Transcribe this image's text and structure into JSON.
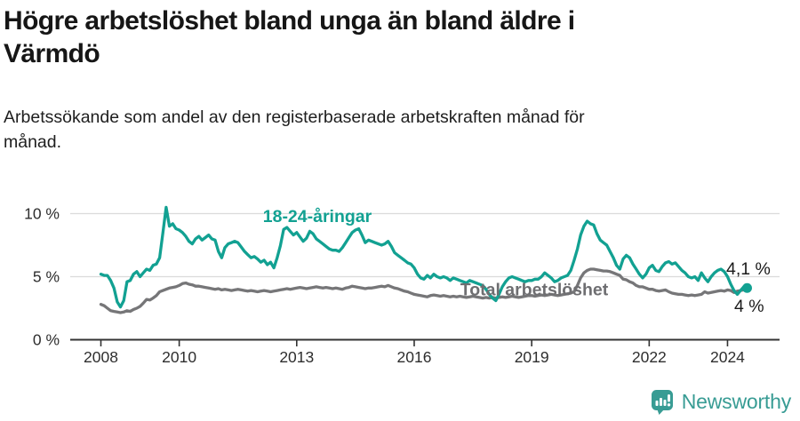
{
  "page": {
    "title": "Högre arbetslöshet bland unga än bland äldre i\nVärmdö",
    "subtitle": "Arbetssökande som andel av den registerbaserade arbetskraften månad för\nmånad."
  },
  "footer": {
    "brand": "Newsworthy",
    "brand_color": "#389c94",
    "logo_icon": "speech-bubble-bar-chart-icon"
  },
  "chart_data": {
    "type": "line",
    "title": "Högre arbetslöshet bland unga än bland äldre i Värmdö",
    "subtitle": "Arbetssökande som andel av den registerbaserade arbetskraften månad för månad.",
    "unit": "%",
    "frequency": "monthly",
    "period_start": "2008-01",
    "period_end": "2024-07",
    "grid": "horizontal",
    "legend_position": "inline-labels",
    "ylim": [
      0,
      10.7
    ],
    "y_ticks": [
      {
        "value": 0,
        "label": "0 %"
      },
      {
        "value": 5,
        "label": "5 %"
      },
      {
        "value": 10,
        "label": "10 %"
      }
    ],
    "x_ticks": [
      {
        "year": 2008,
        "label": "2008"
      },
      {
        "year": 2010,
        "label": "2010"
      },
      {
        "year": 2013,
        "label": "2013"
      },
      {
        "year": 2016,
        "label": "2016"
      },
      {
        "year": 2019,
        "label": "2019"
      },
      {
        "year": 2022,
        "label": "2022"
      },
      {
        "year": 2024,
        "label": "2024"
      }
    ],
    "axis_color": "#333333",
    "gridline_color": "#dbdbdb",
    "end_label_color": "#1a1a1a",
    "series": [
      {
        "name": "Total arbetslöshet",
        "inline_label": "Total arbetslöshet",
        "color": "#767678",
        "label_color": "#6e6e71",
        "end_label": "4 %",
        "end_value": 4.0,
        "end_dot": false,
        "values": [
          2.8,
          2.7,
          2.5,
          2.3,
          2.25,
          2.2,
          2.15,
          2.2,
          2.3,
          2.25,
          2.4,
          2.5,
          2.65,
          2.9,
          3.2,
          3.15,
          3.3,
          3.5,
          3.8,
          3.9,
          4.0,
          4.1,
          4.15,
          4.2,
          4.3,
          4.45,
          4.5,
          4.4,
          4.35,
          4.25,
          4.25,
          4.2,
          4.15,
          4.1,
          4.05,
          4.0,
          4.05,
          3.95,
          4.0,
          3.95,
          3.9,
          3.95,
          4.0,
          3.95,
          3.9,
          3.85,
          3.9,
          3.85,
          3.8,
          3.85,
          3.9,
          3.85,
          3.8,
          3.85,
          3.9,
          3.95,
          4.0,
          4.05,
          4.0,
          4.05,
          4.1,
          4.15,
          4.1,
          4.05,
          4.1,
          4.15,
          4.2,
          4.15,
          4.1,
          4.15,
          4.1,
          4.05,
          4.1,
          4.05,
          4.0,
          4.1,
          4.15,
          4.25,
          4.2,
          4.15,
          4.1,
          4.05,
          4.1,
          4.1,
          4.15,
          4.2,
          4.25,
          4.2,
          4.3,
          4.2,
          4.1,
          4.05,
          3.95,
          3.85,
          3.8,
          3.7,
          3.6,
          3.55,
          3.5,
          3.45,
          3.4,
          3.5,
          3.55,
          3.5,
          3.45,
          3.5,
          3.45,
          3.4,
          3.45,
          3.4,
          3.45,
          3.4,
          3.35,
          3.4,
          3.45,
          3.4,
          3.35,
          3.3,
          3.35,
          3.3,
          3.35,
          3.3,
          3.35,
          3.4,
          3.35,
          3.4,
          3.45,
          3.4,
          3.35,
          3.4,
          3.45,
          3.5,
          3.5,
          3.45,
          3.5,
          3.55,
          3.5,
          3.55,
          3.6,
          3.55,
          3.5,
          3.55,
          3.6,
          3.65,
          3.7,
          3.8,
          4.3,
          4.9,
          5.3,
          5.5,
          5.6,
          5.6,
          5.55,
          5.5,
          5.45,
          5.45,
          5.4,
          5.3,
          5.2,
          5.1,
          4.8,
          4.75,
          4.6,
          4.5,
          4.3,
          4.2,
          4.2,
          4.1,
          4.0,
          4.0,
          3.9,
          3.85,
          3.9,
          3.95,
          3.8,
          3.7,
          3.65,
          3.6,
          3.6,
          3.55,
          3.5,
          3.55,
          3.5,
          3.55,
          3.6,
          3.8,
          3.7,
          3.75,
          3.8,
          3.85,
          3.9,
          3.85,
          3.95,
          3.9,
          3.75,
          3.85,
          3.9,
          3.95,
          4.0
        ]
      },
      {
        "name": "18-24-åringar",
        "inline_label": "18-24-åringar",
        "color": "#12a192",
        "label_color": "#12a192",
        "end_label": "4,1 %",
        "end_value": 4.1,
        "end_dot": true,
        "values": [
          5.2,
          5.1,
          5.1,
          4.7,
          4.1,
          3.0,
          2.6,
          3.1,
          4.6,
          4.7,
          5.2,
          5.4,
          5.0,
          5.3,
          5.6,
          5.5,
          5.9,
          6.0,
          6.5,
          8.5,
          10.5,
          9.0,
          9.2,
          8.8,
          8.7,
          8.5,
          8.2,
          7.8,
          7.6,
          8.0,
          8.2,
          7.9,
          8.1,
          8.3,
          8.0,
          7.9,
          7.0,
          6.5,
          7.3,
          7.6,
          7.7,
          7.8,
          7.7,
          7.35,
          7.0,
          6.75,
          6.5,
          6.6,
          6.4,
          6.15,
          6.3,
          5.95,
          6.15,
          5.7,
          6.5,
          7.45,
          8.75,
          8.9,
          8.6,
          8.3,
          8.5,
          8.15,
          7.8,
          8.05,
          8.6,
          8.4,
          8.0,
          7.8,
          7.6,
          7.4,
          7.2,
          7.1,
          7.1,
          7.0,
          7.3,
          7.7,
          8.1,
          8.5,
          8.7,
          8.8,
          8.3,
          7.7,
          7.9,
          7.8,
          7.7,
          7.6,
          7.5,
          7.6,
          7.8,
          7.4,
          6.9,
          6.7,
          6.5,
          6.3,
          6.1,
          6.0,
          5.7,
          5.2,
          4.9,
          4.8,
          5.1,
          4.9,
          5.2,
          5.0,
          4.9,
          5.0,
          4.9,
          4.7,
          4.9,
          4.8,
          4.7,
          4.6,
          4.5,
          4.7,
          4.6,
          4.5,
          4.4,
          4.3,
          4.0,
          3.6,
          3.3,
          3.1,
          3.6,
          4.2,
          4.6,
          4.9,
          5.0,
          4.9,
          4.8,
          4.7,
          4.6,
          4.7,
          4.7,
          4.8,
          4.8,
          5.0,
          5.3,
          5.1,
          4.9,
          4.6,
          4.7,
          4.9,
          5.0,
          5.1,
          5.5,
          6.3,
          7.2,
          8.3,
          9.0,
          9.4,
          9.2,
          9.1,
          8.4,
          7.9,
          7.7,
          7.5,
          7.0,
          6.5,
          5.9,
          5.6,
          6.4,
          6.7,
          6.5,
          6.0,
          5.6,
          5.2,
          4.9,
          5.2,
          5.7,
          5.9,
          5.5,
          5.4,
          5.8,
          6.1,
          6.2,
          6.0,
          6.1,
          5.8,
          5.5,
          5.3,
          5.0,
          4.9,
          5.0,
          4.7,
          5.3,
          4.9,
          4.6,
          5.0,
          5.3,
          5.5,
          5.6,
          5.4,
          5.0,
          4.4,
          3.9,
          3.6,
          3.9,
          4.2,
          4.1
        ]
      }
    ]
  }
}
